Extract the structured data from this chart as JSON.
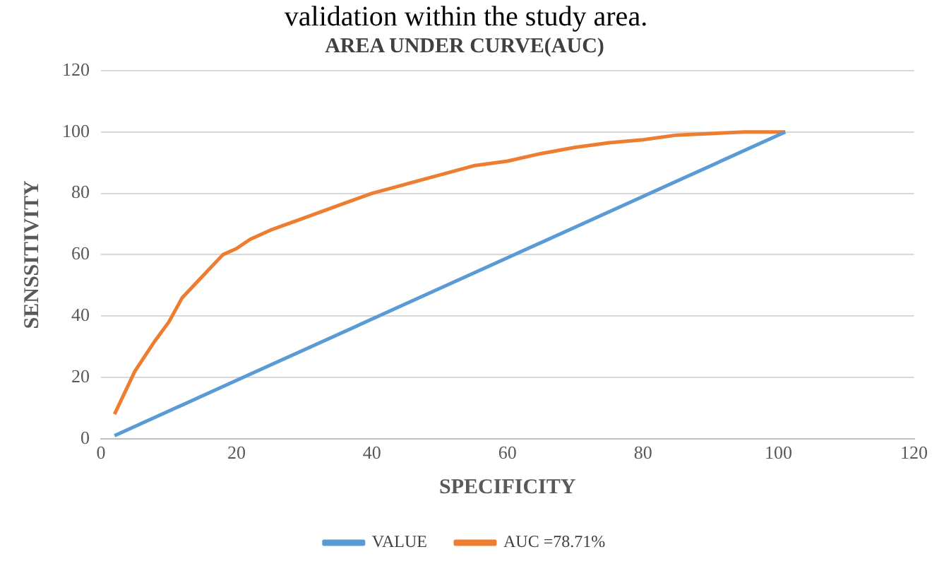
{
  "chart_data": {
    "type": "line",
    "title": "AREA UNDER CURVE(AUC)",
    "xlabel": "SPECIFICITY",
    "ylabel": "SENSSITIVITY",
    "annotations": [
      "validation within the study area."
    ],
    "xlim": [
      0,
      120
    ],
    "xticks": [
      0,
      20,
      40,
      60,
      80,
      100,
      120
    ],
    "ylim": [
      0,
      120
    ],
    "yticks": [
      0,
      20,
      40,
      60,
      80,
      100,
      120
    ],
    "grid": "y",
    "legend": "bottom",
    "marker": "none",
    "line_style": "solid",
    "series": [
      {
        "name": "VALUE",
        "color": "#5b9bd5",
        "x": [
          2,
          20,
          40,
          60,
          80,
          101
        ],
        "values": [
          1,
          19,
          39,
          59,
          79,
          100
        ]
      },
      {
        "name": "AUC =78.71%",
        "color": "#ed7d31",
        "x": [
          2,
          5,
          8,
          10,
          12,
          15,
          18,
          20,
          22,
          25,
          30,
          35,
          40,
          45,
          50,
          55,
          60,
          65,
          70,
          75,
          80,
          85,
          90,
          95,
          101
        ],
        "values": [
          8,
          22,
          32,
          38,
          46,
          53,
          60,
          62,
          65,
          68,
          72,
          76,
          80,
          83,
          86,
          89,
          90.5,
          93,
          95,
          96.5,
          97.5,
          99,
          99.5,
          100,
          100
        ]
      }
    ]
  }
}
